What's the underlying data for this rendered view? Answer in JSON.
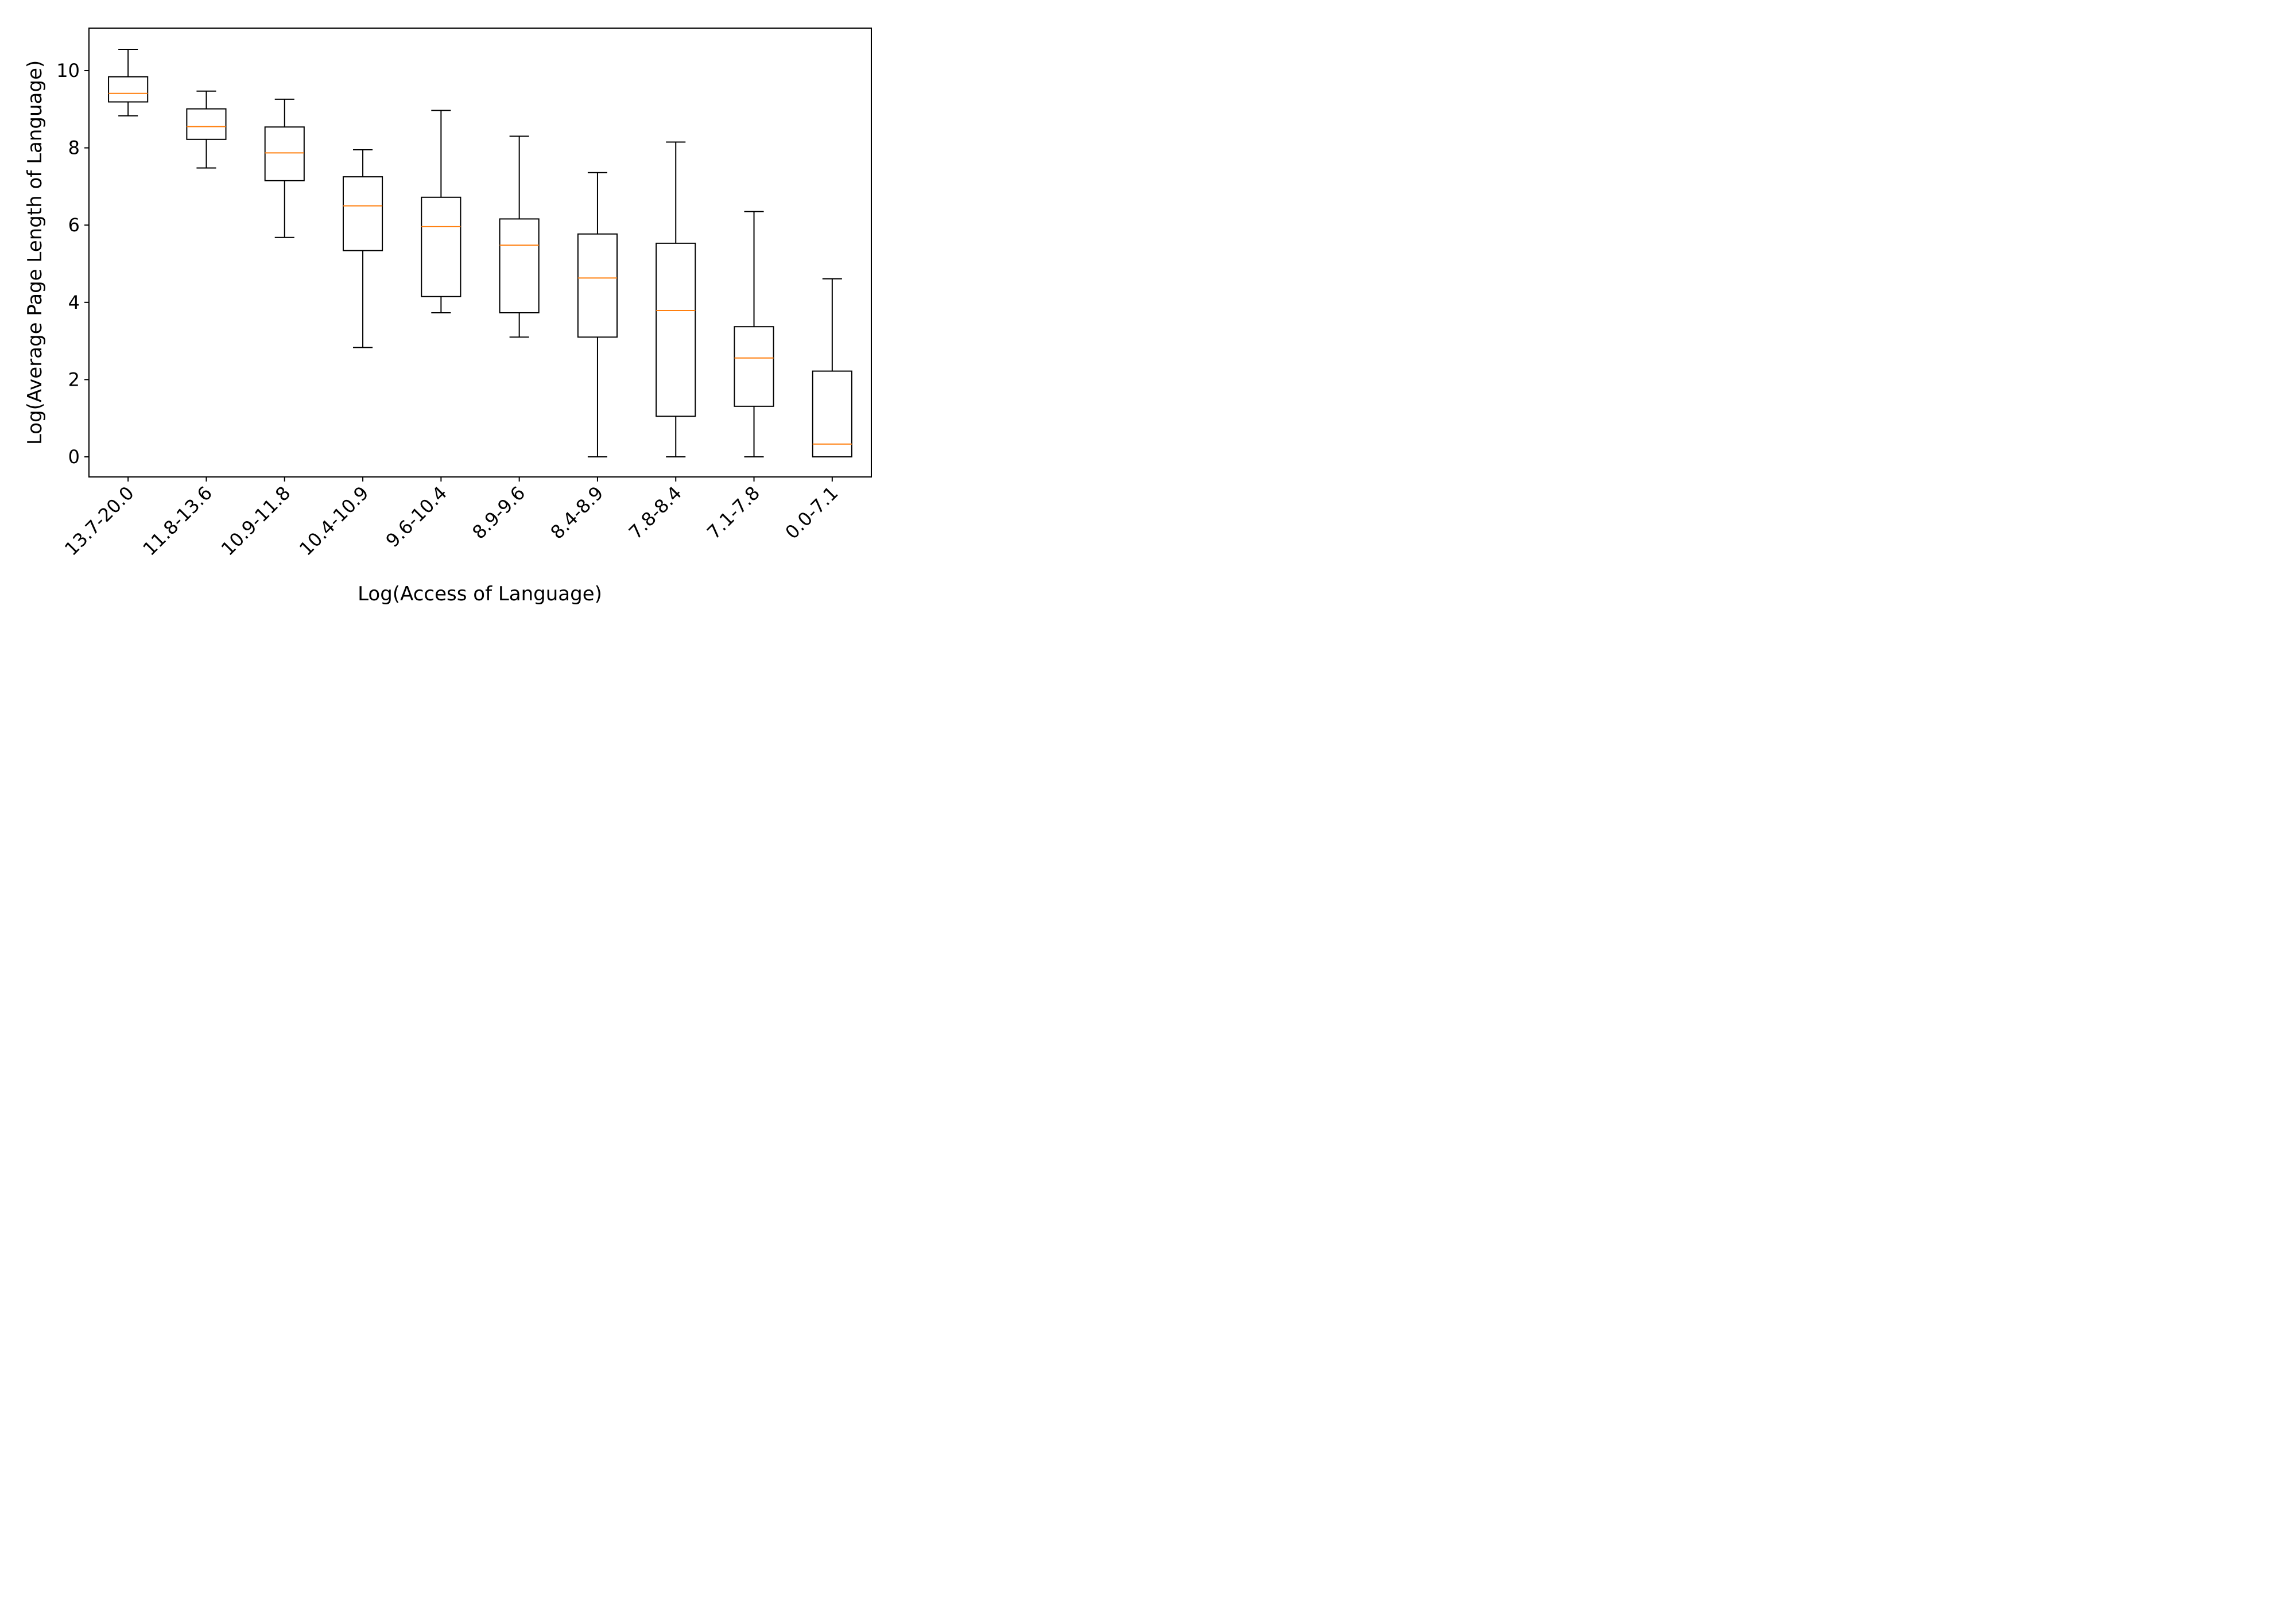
{
  "chart_data": {
    "type": "box",
    "title": "",
    "xlabel": "Log(Access of Language)",
    "ylabel": "Log(Average Page Length of Language)",
    "ylim": [
      -0.52,
      11.1
    ],
    "yticks": [
      0,
      2,
      4,
      6,
      8,
      10
    ],
    "grid": false,
    "legend": "none",
    "colors": {
      "box": "#000000",
      "median": "#ff7f0e"
    },
    "categories": [
      "13.7-20.0",
      "11.8-13.6",
      "10.9-11.8",
      "10.4-10.9",
      "9.6-10.4",
      "8.9-9.6",
      "8.4-8.9",
      "7.8-8.4",
      "7.1-7.8",
      "0.0-7.1"
    ],
    "boxes": [
      {
        "whislo": 8.83,
        "q1": 9.19,
        "med": 9.41,
        "q3": 9.84,
        "whishi": 10.55
      },
      {
        "whislo": 7.48,
        "q1": 8.22,
        "med": 8.55,
        "q3": 9.01,
        "whishi": 9.47
      },
      {
        "whislo": 5.68,
        "q1": 7.15,
        "med": 7.87,
        "q3": 8.54,
        "whishi": 9.26
      },
      {
        "whislo": 2.83,
        "q1": 5.34,
        "med": 6.5,
        "q3": 7.25,
        "whishi": 7.95
      },
      {
        "whislo": 3.73,
        "q1": 4.15,
        "med": 5.96,
        "q3": 6.72,
        "whishi": 8.97
      },
      {
        "whislo": 3.1,
        "q1": 3.73,
        "med": 5.48,
        "q3": 6.16,
        "whishi": 8.3
      },
      {
        "whislo": 0.0,
        "q1": 3.1,
        "med": 4.63,
        "q3": 5.77,
        "whishi": 7.36
      },
      {
        "whislo": 0.0,
        "q1": 1.05,
        "med": 3.79,
        "q3": 5.53,
        "whishi": 8.15
      },
      {
        "whislo": 0.0,
        "q1": 1.31,
        "med": 2.56,
        "q3": 3.37,
        "whishi": 6.35
      },
      {
        "whislo": 0.0,
        "q1": 0.0,
        "med": 0.33,
        "q3": 2.22,
        "whishi": 4.61
      }
    ]
  }
}
